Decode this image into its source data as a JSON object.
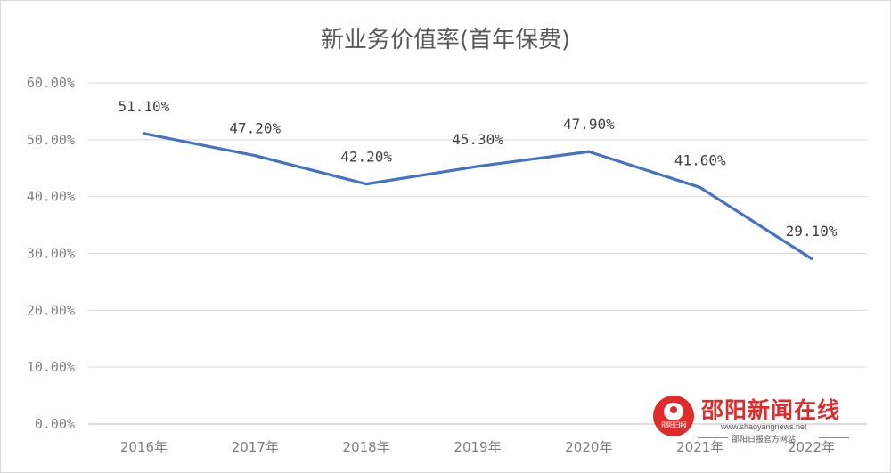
{
  "chart_data": {
    "type": "line",
    "title": "新业务价值率(首年保费)",
    "xlabel": "",
    "ylabel": "",
    "categories": [
      "2016年",
      "2017年",
      "2018年",
      "2019年",
      "2020年",
      "2021年",
      "2022年"
    ],
    "values": [
      51.1,
      47.2,
      42.2,
      45.3,
      47.9,
      41.6,
      29.1
    ],
    "data_labels": [
      "51.10%",
      "47.20%",
      "42.20%",
      "45.30%",
      "47.90%",
      "41.60%",
      "29.10%"
    ],
    "y_ticks": [
      "0.00%",
      "10.00%",
      "20.00%",
      "30.00%",
      "40.00%",
      "50.00%",
      "60.00%"
    ],
    "ylim": [
      0,
      60
    ],
    "grid": true,
    "legend": "none",
    "line_color": "#4472c4"
  },
  "watermark": {
    "name": "邵阳新闻在线",
    "url": "www.shaoyangnews.net",
    "sub": "邵阳日报官方网站",
    "logo_text": "邵阳日报",
    "color": "#e12a2a"
  }
}
